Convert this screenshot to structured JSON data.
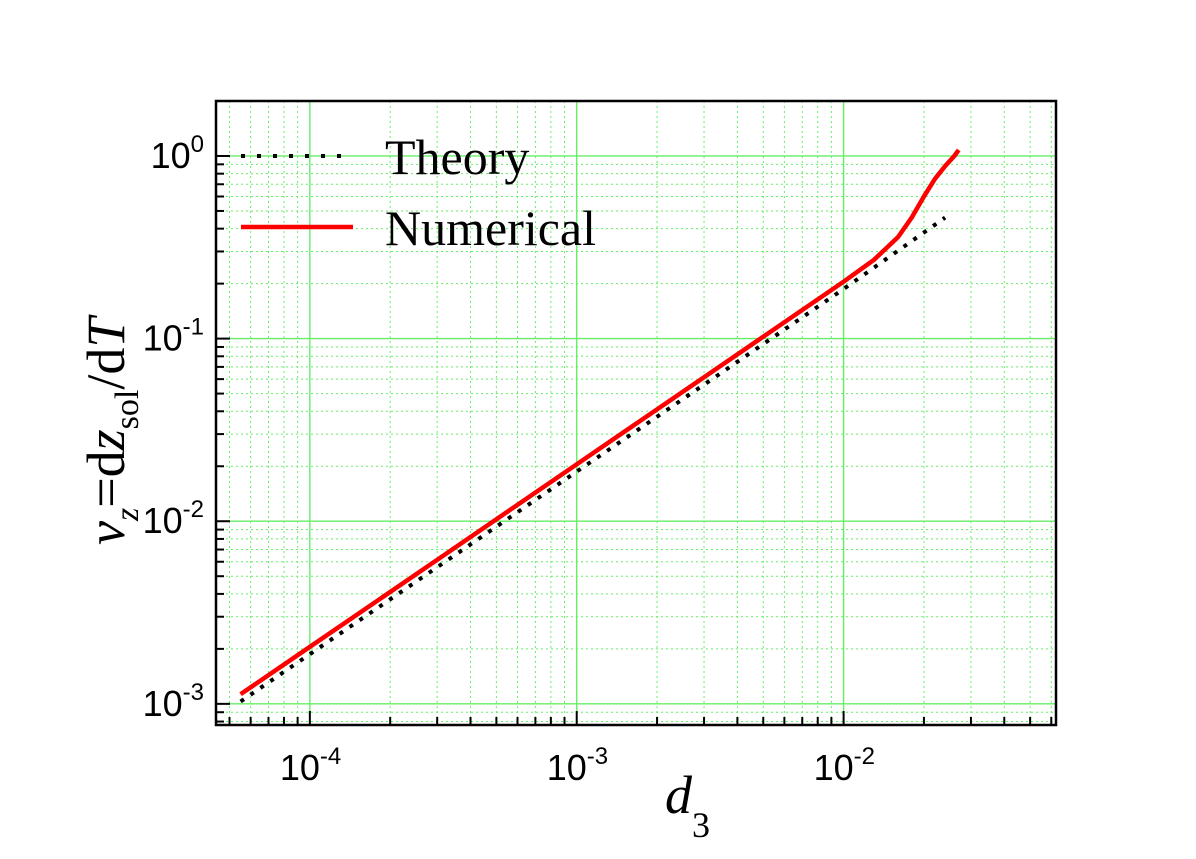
{
  "chart_data": {
    "type": "line",
    "x_scale": "log",
    "y_scale": "log",
    "xlim": [
      4.45e-05,
      0.0625
    ],
    "ylim": [
      0.000766,
      2.0
    ],
    "grid": true,
    "legend_position": "top-left",
    "xlabel": {
      "main": "d",
      "sub": "3"
    },
    "ylabel": {
      "nu": "ν",
      "nu_sub": "z",
      "eq": "=d",
      "z": "z",
      "z_sub": "sol",
      "slash": "/d",
      "T": "T"
    },
    "x_ticks": [
      {
        "value": 0.0001,
        "base": "10",
        "exp": "-4"
      },
      {
        "value": 0.001,
        "base": "10",
        "exp": "-3"
      },
      {
        "value": 0.01,
        "base": "10",
        "exp": "-2"
      }
    ],
    "y_ticks": [
      {
        "value": 0.001,
        "base": "10",
        "exp": "-3"
      },
      {
        "value": 0.01,
        "base": "10",
        "exp": "-2"
      },
      {
        "value": 0.1,
        "base": "10",
        "exp": "-1"
      },
      {
        "value": 1,
        "base": "10",
        "exp": "0"
      }
    ],
    "series": [
      {
        "name": "Theory",
        "color": "#000000",
        "style": "dotted",
        "x": [
          5.5e-05,
          0.0001,
          0.0003,
          0.001,
          0.003,
          0.01,
          0.024
        ],
        "y": [
          0.00103,
          0.00187,
          0.0056,
          0.0187,
          0.056,
          0.187,
          0.46
        ]
      },
      {
        "name": "Numerical",
        "color": "#ff0000",
        "style": "solid",
        "x": [
          5.5e-05,
          0.0001,
          0.0003,
          0.001,
          0.003,
          0.01,
          0.013,
          0.016,
          0.018,
          0.02,
          0.022,
          0.024,
          0.026,
          0.027
        ],
        "y": [
          0.00113,
          0.00205,
          0.00615,
          0.0205,
          0.0615,
          0.205,
          0.27,
          0.36,
          0.46,
          0.6,
          0.75,
          0.88,
          1.0,
          1.08
        ]
      }
    ]
  }
}
